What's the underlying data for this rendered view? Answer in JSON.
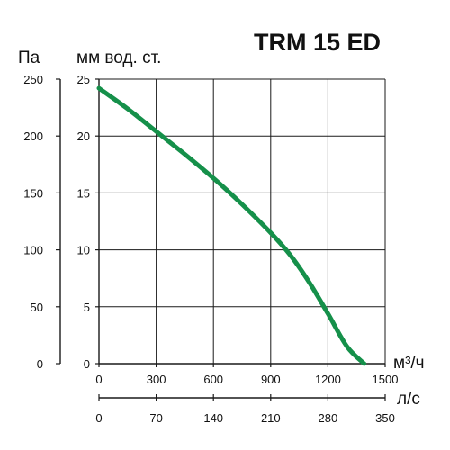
{
  "chart_data": {
    "type": "line",
    "title": "TRM 15 ED",
    "y_left_unit": "Па",
    "y_right_unit": "мм  вод. ст.",
    "x_unit_top": "м³/ч",
    "x_unit_bottom": "л/с",
    "y_pa_ticks": [
      "250",
      "200",
      "150",
      "100",
      "50",
      "0"
    ],
    "y_pa_values": [
      250,
      200,
      150,
      100,
      50,
      0
    ],
    "y_mm_ticks": [
      "25",
      "20",
      "15",
      "10",
      "5",
      "0"
    ],
    "x_m3h_ticks": [
      "0",
      "300",
      "600",
      "900",
      "1200",
      "1500"
    ],
    "x_m3h_values": [
      0,
      300,
      600,
      900,
      1200,
      1500
    ],
    "x_ls_ticks": [
      "0",
      "70",
      "140",
      "210",
      "280",
      "350"
    ],
    "x_ls_values": [
      0,
      70,
      140,
      210,
      280,
      350
    ],
    "xlim": [
      0,
      1500
    ],
    "ylim": [
      0,
      250
    ],
    "grid": true,
    "series": [
      {
        "color": "#15904a",
        "x": [
          0,
          150,
          300,
          450,
          600,
          750,
          900,
          1000,
          1100,
          1200,
          1300,
          1390
        ],
        "y": [
          242,
          224,
          204,
          184,
          163,
          140,
          115,
          96,
          72,
          44,
          15,
          0
        ]
      }
    ]
  }
}
